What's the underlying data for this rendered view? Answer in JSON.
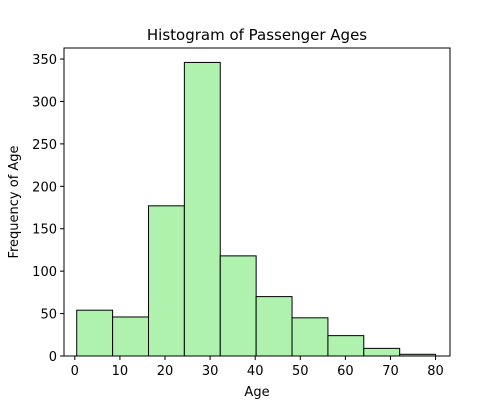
{
  "chart_data": {
    "type": "bar",
    "title": "Histogram of Passenger Ages",
    "xlabel": "Age",
    "ylabel": "Frequency of Age",
    "xlim": [
      -2.4,
      83.2
    ],
    "ylim": [
      0,
      363
    ],
    "xticks": [
      0,
      10,
      20,
      30,
      40,
      50,
      60,
      70,
      80
    ],
    "yticks": [
      0,
      50,
      100,
      150,
      200,
      250,
      300,
      350
    ],
    "bins": [
      {
        "x0": 0.42,
        "x1": 8.38,
        "value": 54
      },
      {
        "x0": 8.38,
        "x1": 16.34,
        "value": 46
      },
      {
        "x0": 16.34,
        "x1": 24.29,
        "value": 177
      },
      {
        "x0": 24.29,
        "x1": 32.25,
        "value": 346
      },
      {
        "x0": 32.25,
        "x1": 40.21,
        "value": 118
      },
      {
        "x0": 40.21,
        "x1": 48.17,
        "value": 70
      },
      {
        "x0": 48.17,
        "x1": 56.13,
        "value": 45
      },
      {
        "x0": 56.13,
        "x1": 64.08,
        "value": 24
      },
      {
        "x0": 64.08,
        "x1": 72.04,
        "value": 9
      },
      {
        "x0": 72.04,
        "x1": 80.0,
        "value": 2
      }
    ],
    "bar_color": "#aef2ae",
    "edge_color": "#000000",
    "grid": false,
    "legend": "none"
  }
}
